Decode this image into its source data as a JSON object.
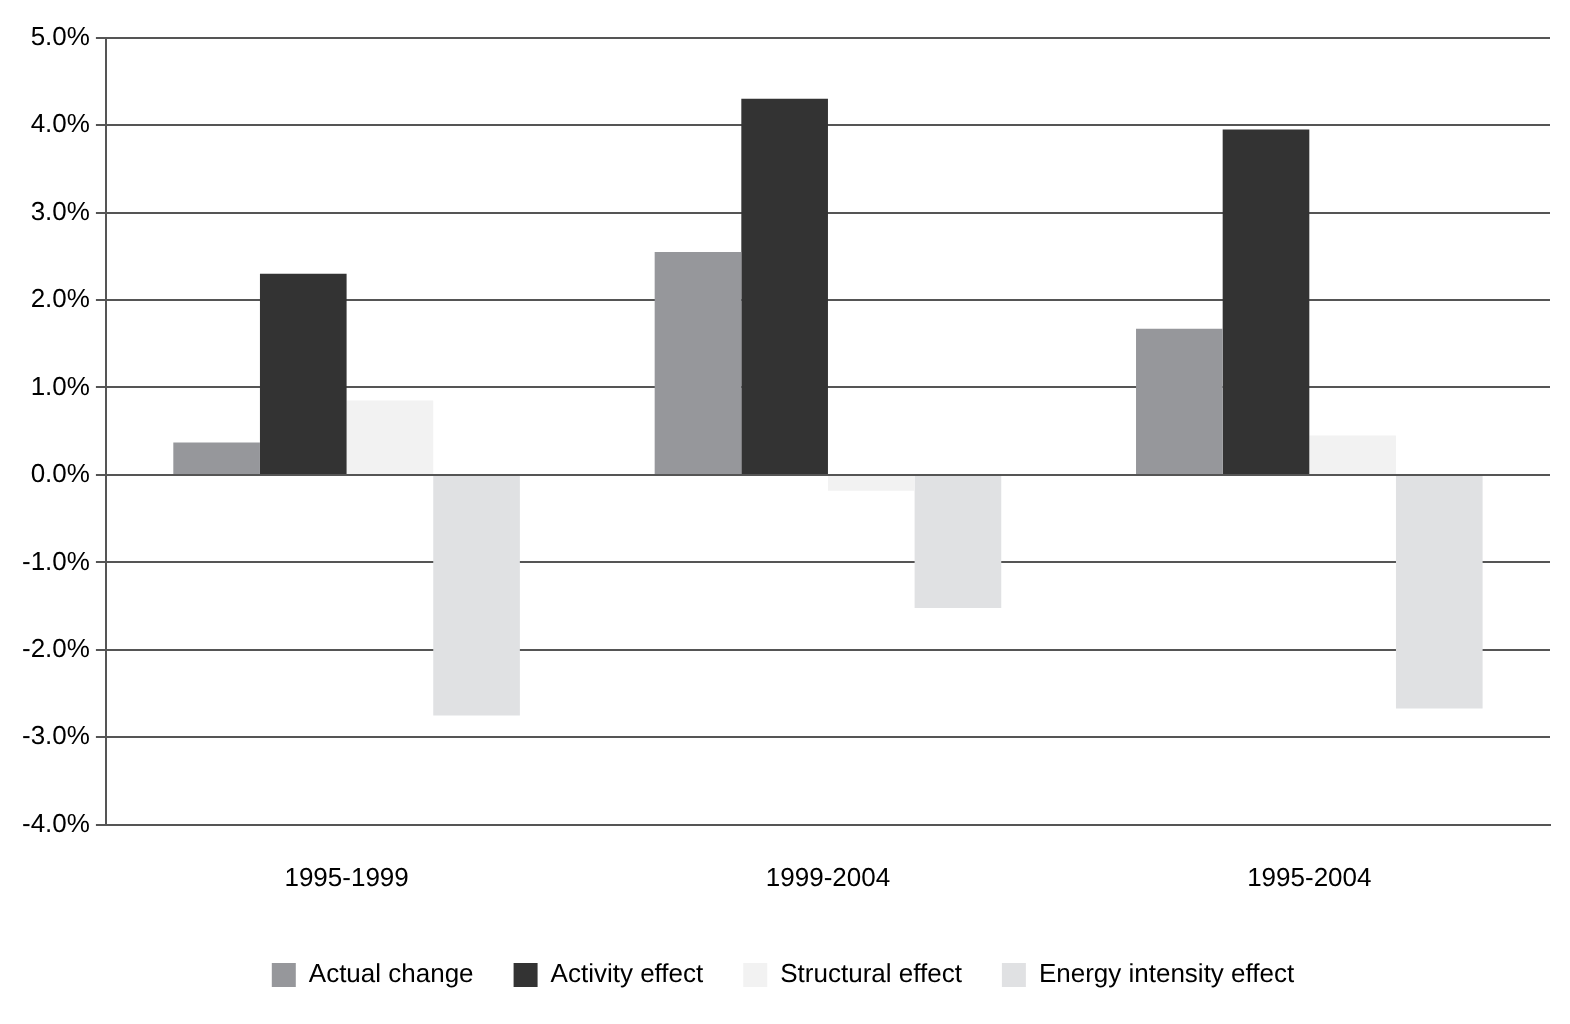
{
  "chart_data": {
    "type": "bar",
    "categories": [
      "1995-1999",
      "1999-2004",
      "1995-2004"
    ],
    "series": [
      {
        "name": "Actual change",
        "color": "#96979b",
        "values": [
          0.37,
          2.55,
          1.67
        ]
      },
      {
        "name": "Activity effect",
        "color": "#333333",
        "values": [
          2.3,
          4.3,
          3.95
        ]
      },
      {
        "name": "Structural effect",
        "color": "#f2f2f2",
        "values": [
          0.85,
          -0.18,
          0.45
        ]
      },
      {
        "name": "Energy intensity effect",
        "color": "#e0e1e3",
        "values": [
          -2.75,
          -1.52,
          -2.67
        ]
      }
    ],
    "ylim": [
      -4,
      5
    ],
    "yticks": [
      {
        "value": -4,
        "label": "-4.0%"
      },
      {
        "value": -3,
        "label": "-3.0%"
      },
      {
        "value": -2,
        "label": "-2.0%"
      },
      {
        "value": -1,
        "label": "-1.0%"
      },
      {
        "value": 0,
        "label": "0.0%"
      },
      {
        "value": 1,
        "label": "1.0%"
      },
      {
        "value": 2,
        "label": "2.0%"
      },
      {
        "value": 3,
        "label": "3.0%"
      },
      {
        "value": 4,
        "label": "4.0%"
      },
      {
        "value": 5,
        "label": "5.0%"
      }
    ],
    "grid": "y",
    "legend": "bottom"
  }
}
